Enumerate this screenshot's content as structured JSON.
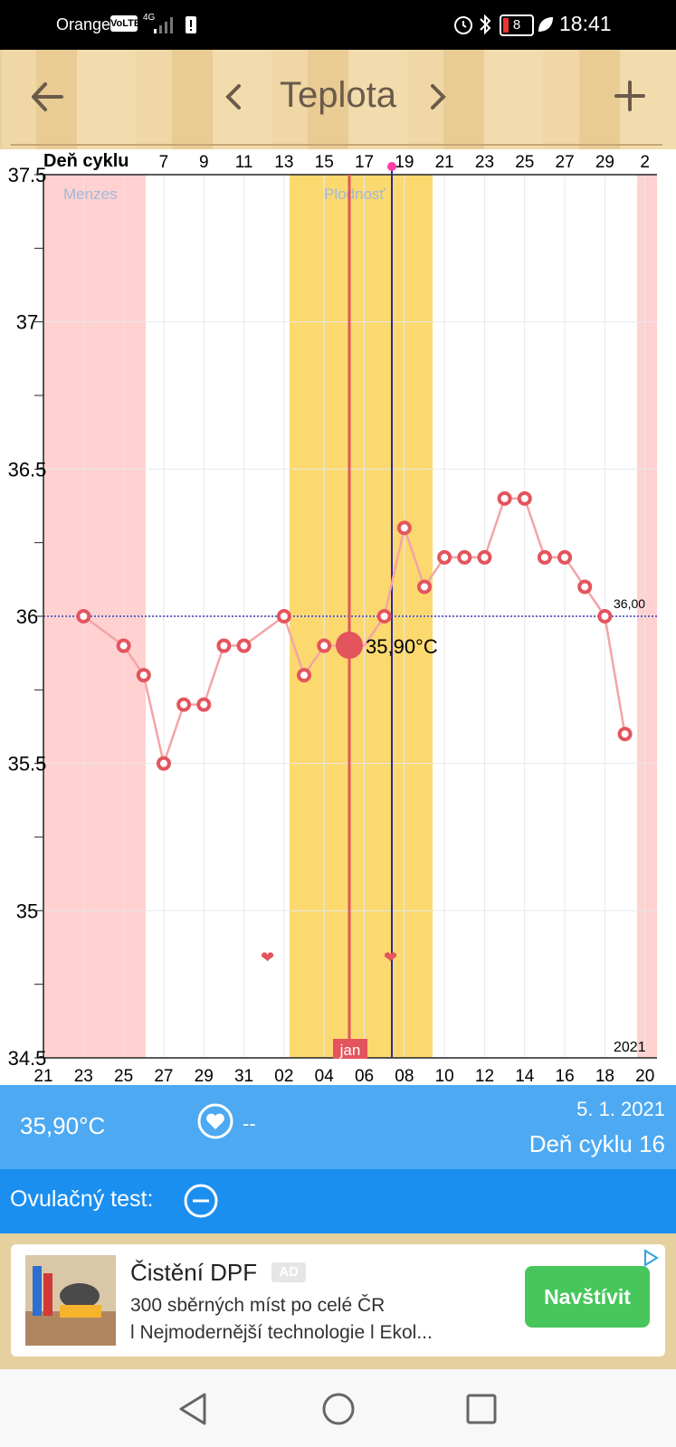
{
  "status_bar": {
    "carrier": "Orange",
    "volte": "VoLTE",
    "network": "4G",
    "battery": "8",
    "time": "18:41"
  },
  "header": {
    "title": "Teplota",
    "back_icon": "back-arrow-icon",
    "prev_icon": "chevron-left-icon",
    "next_icon": "chevron-right-icon",
    "add_icon": "plus-icon"
  },
  "chart_data": {
    "type": "line",
    "top_axis_label": "Deň cyklu",
    "top_ticks": [
      "7",
      "9",
      "11",
      "13",
      "15",
      "17",
      "19",
      "21",
      "23",
      "25",
      "27",
      "29",
      "2"
    ],
    "bottom_ticks": [
      "21",
      "23",
      "25",
      "27",
      "29",
      "31",
      "02",
      "04",
      "06",
      "08",
      "10",
      "12",
      "14",
      "16",
      "18",
      "20"
    ],
    "y_ticks": [
      "37.5",
      "37",
      "36.5",
      "36",
      "35.5",
      "35",
      "34.5"
    ],
    "ylim": [
      34.5,
      37.5
    ],
    "x_start_date": "2020-12-21",
    "values": [
      null,
      null,
      36.0,
      null,
      35.9,
      35.8,
      35.5,
      35.7,
      35.7,
      35.9,
      35.9,
      null,
      36.0,
      35.8,
      35.9,
      35.9,
      35.9,
      36.0,
      36.3,
      36.1,
      36.2,
      36.2,
      36.2,
      36.4,
      36.4,
      36.2,
      36.2,
      36.1,
      36.0,
      35.6
    ],
    "menses_label": "Menzes",
    "fertility_label": "Plodnosť",
    "selected_value_label": "35,90°C",
    "reference_label": "36,00",
    "month_label": "jan",
    "year_label": "2021",
    "grid": true
  },
  "info": {
    "temperature": "35,90°C",
    "heart_value": "--",
    "date": "5. 1. 2021",
    "cycle_day": "Deň cyklu 16",
    "ovulation_label": "Ovulačný test:"
  },
  "ad": {
    "title": "Čistění DPF",
    "badge": "AD",
    "line1": "300 sběrných míst po celé ČR",
    "line2": "l Nejmodernější technologie l Ekol...",
    "cta": "Navštívit"
  },
  "navbar": {
    "back": "nav-back-icon",
    "home": "nav-home-icon",
    "recents": "nav-recents-icon"
  },
  "colors": {
    "accent": "#4da9f2",
    "line": "#e4545d",
    "fertility": "#fbd96f",
    "menses": "#ffcfcf",
    "cta": "#46c65b"
  }
}
